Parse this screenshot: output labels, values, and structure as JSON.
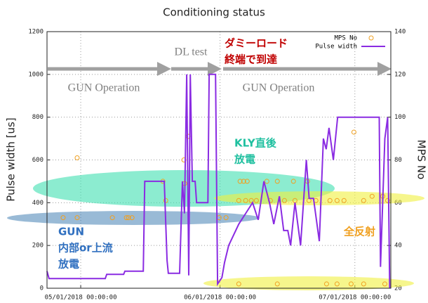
{
  "chart_data": {
    "type": "line",
    "title": "Conditioning status",
    "y_label": "Pulse width [us]",
    "y2_label": "MPS No",
    "xlim": [
      "2018-04-23T12:00",
      "2018-07-09T00:00"
    ],
    "xticks": [
      {
        "value": "2018-05-01T00:00",
        "label": "05/01/2018 00:00:00"
      },
      {
        "value": "2018-06-01T00:00",
        "label": "06/01/2018 00:00:00"
      },
      {
        "value": "2018-07-01T00:00",
        "label": "07/01/2018 00:00:00"
      }
    ],
    "ylim": [
      0,
      1200
    ],
    "yticks": [
      0,
      200,
      400,
      600,
      800,
      1000,
      1200
    ],
    "y2lim": [
      20,
      140
    ],
    "y2ticks": [
      20,
      40,
      60,
      80,
      100,
      120,
      140
    ],
    "grid": true,
    "legend": "upper right",
    "series": [
      {
        "name": "MPS No",
        "type": "scatter",
        "axis": "y2",
        "color": "#f0a020",
        "x": [
          "2018-04-27T02:00",
          "2018-04-30T05:00",
          "2018-04-30T05:00",
          "2018-05-08T01:00",
          "2018-05-11T04:00",
          "2018-05-11T15:00",
          "2018-05-12T10:00",
          "2018-05-19T07:00",
          "2018-05-19T22:00",
          "2018-05-23T23:00",
          "2018-05-24T03:00",
          "2018-05-24T22:00",
          "2018-05-31T19:00",
          "2018-06-02T08:00",
          "2018-06-05T04:00",
          "2018-06-05T11:00",
          "2018-06-06T06:00",
          "2018-06-06T17:00",
          "2018-06-07T01:00",
          "2018-06-07T23:00",
          "2018-06-09T02:00",
          "2018-06-11T10:00",
          "2018-06-12T05:00",
          "2018-06-13T18:00",
          "2018-06-15T08:00",
          "2018-06-17T08:00",
          "2018-06-17T16:00",
          "2018-06-20T11:00",
          "2018-06-20T19:00",
          "2018-06-22T08:00",
          "2018-06-25T11:00",
          "2018-06-27T01:00",
          "2018-06-28T14:00",
          "2018-06-30T19:00",
          "2018-07-02T23:00",
          "2018-07-04T20:00",
          "2018-07-07T05:00",
          "2018-07-08T07:00",
          "2018-06-05T04:00",
          "2018-06-13T18:00",
          "2018-06-24T17:00",
          "2018-06-27T01:00",
          "2018-06-30T04:00",
          "2018-07-02T23:00",
          "2018-07-07T16:00"
        ],
        "values": [
          53,
          53,
          81,
          53,
          53,
          53,
          53,
          70,
          61,
          80,
          69,
          91,
          53,
          53,
          61,
          70,
          70,
          61,
          70,
          61,
          61,
          70,
          61,
          70,
          61,
          70,
          61,
          70,
          61,
          61,
          61,
          61,
          61,
          93,
          61,
          63,
          63,
          61,
          22,
          22,
          22,
          22,
          22,
          22,
          22
        ]
      },
      {
        "name": "Pulse width",
        "type": "line",
        "color": "#8a2be2",
        "x": [
          "2018-04-23T12:00",
          "2018-04-23T23:00",
          "2018-05-06T11:00",
          "2018-05-06T19:00",
          "2018-05-10T13:00",
          "2018-05-10T20:00",
          "2018-05-14T22:00",
          "2018-05-15T06:00",
          "2018-05-19T14:00",
          "2018-05-20T05:00",
          "2018-05-20T12:00",
          "2018-05-23T00:00",
          "2018-05-23T15:00",
          "2018-05-24T02:00",
          "2018-05-24T14:00",
          "2018-05-25T01:00",
          "2018-05-25T09:00",
          "2018-05-25T20:00",
          "2018-05-26T11:00",
          "2018-05-26T19:00",
          "2018-05-29T07:00",
          "2018-05-29T14:00",
          "2018-05-31T00:00",
          "2018-05-31T11:00",
          "2018-06-01T10:00",
          "2018-06-02T00:00",
          "2018-06-02T22:00",
          "2018-06-05T04:00",
          "2018-06-06T17:00",
          "2018-06-08T06:00",
          "2018-06-09T12:00",
          "2018-06-10T18:00",
          "2018-06-12T00:00",
          "2018-06-12T23:00",
          "2018-06-14T05:00",
          "2018-06-15T04:00",
          "2018-06-16T02:00",
          "2018-06-16T17:00",
          "2018-06-17T16:00",
          "2018-06-18T22:00",
          "2018-06-20T05:00",
          "2018-06-20T20:00",
          "2018-06-21T19:00",
          "2018-06-23T02:00",
          "2018-06-24T00:00",
          "2018-06-24T15:00",
          "2018-06-25T06:00",
          "2018-06-26T05:00",
          "2018-06-27T04:00",
          "2018-07-06T10:00",
          "2018-07-06T17:00",
          "2018-07-07T16:00",
          "2018-07-08T07:00",
          "2018-07-08T18:00"
        ],
        "values": [
          80,
          45,
          45,
          65,
          65,
          80,
          80,
          500,
          500,
          130,
          70,
          70,
          500,
          350,
          1000,
          60,
          1000,
          500,
          500,
          400,
          400,
          1000,
          1000,
          20,
          50,
          120,
          200,
          300,
          350,
          400,
          320,
          500,
          400,
          300,
          430,
          270,
          270,
          200,
          400,
          200,
          600,
          420,
          420,
          220,
          700,
          650,
          750,
          600,
          800,
          800,
          100,
          700,
          800,
          0
        ]
      }
    ],
    "annotations": [
      {
        "lines": [
          "DL test"
        ],
        "color": "#808080"
      },
      {
        "lines": [
          "GUN Operation"
        ],
        "color": "#808080"
      },
      {
        "lines": [
          "GUN Operation"
        ],
        "color": "#808080"
      },
      {
        "lines": [
          "ダミーロード",
          "終端で到達"
        ],
        "color": "#c00000"
      },
      {
        "lines": [
          "KLY直後",
          "放電"
        ],
        "color": "#20c0a0"
      },
      {
        "lines": [
          "GUN",
          "内部or上流",
          "放電"
        ],
        "color": "#3070c0"
      },
      {
        "lines": [
          "全反射"
        ],
        "color": "#f0a020"
      }
    ]
  }
}
